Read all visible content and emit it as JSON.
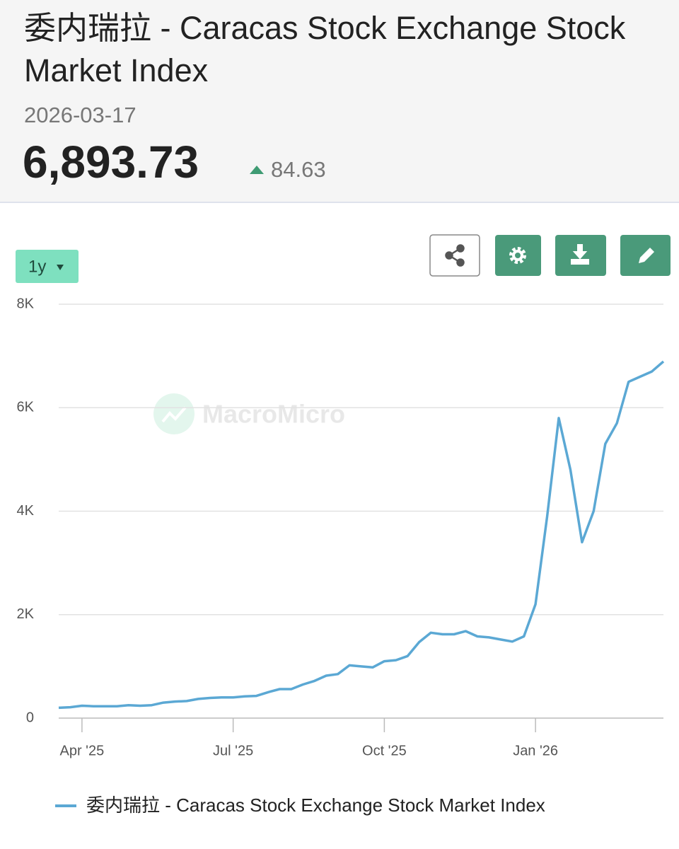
{
  "header": {
    "title": "委内瑞拉 - Caracas Stock Exchange Stock Market Index",
    "date": "2026-03-17",
    "value": "6,893.73",
    "change": "84.63"
  },
  "controls": {
    "range": "1y"
  },
  "watermark": "MacroMicro",
  "chart_data": {
    "type": "line",
    "categories": [
      null,
      null,
      "Apr '25",
      null,
      null,
      null,
      null,
      null,
      null,
      null,
      null,
      null,
      null,
      null,
      null,
      "Jul '25",
      null,
      null,
      null,
      null,
      null,
      null,
      null,
      null,
      null,
      null,
      null,
      null,
      "Oct '25",
      null,
      null,
      null,
      null,
      null,
      null,
      null,
      null,
      null,
      null,
      null,
      null,
      "Jan '26",
      null,
      null,
      null,
      null,
      null,
      null,
      null,
      null,
      null,
      null,
      null
    ],
    "series": [
      {
        "name": "委内瑞拉 - Caracas Stock Exchange Stock Market Index",
        "color": "#5ba8d4",
        "values": [
          200,
          210,
          240,
          230,
          230,
          230,
          250,
          240,
          250,
          300,
          320,
          330,
          370,
          390,
          400,
          400,
          420,
          430,
          500,
          560,
          560,
          650,
          720,
          820,
          850,
          1020,
          1000,
          980,
          1100,
          1120,
          1200,
          1470,
          1650,
          1620,
          1620,
          1680,
          1580,
          1560,
          1520,
          1480,
          1580,
          2200,
          3900,
          5800,
          4800,
          3400,
          4000,
          5300,
          5700,
          6500,
          6600,
          6700,
          6893.73
        ]
      }
    ],
    "ylim": [
      0,
      8000
    ],
    "yticks": [
      0,
      {
        "value": 2000,
        "label": "2K"
      },
      {
        "value": 4000,
        "label": "4K"
      },
      {
        "value": 6000,
        "label": "6K"
      },
      {
        "value": 8000,
        "label": "8K"
      }
    ],
    "grid": true
  }
}
